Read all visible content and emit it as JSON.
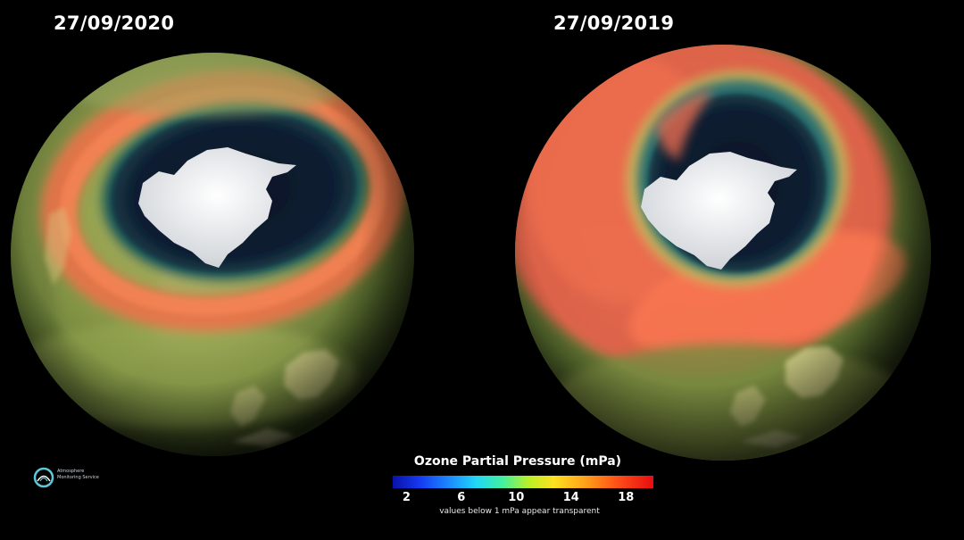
{
  "panels": [
    {
      "date": "27/09/2020"
    },
    {
      "date": "27/09/2019"
    }
  ],
  "colorbar": {
    "title": "Ozone Partial Pressure (mPa)",
    "ticks": [
      "2",
      "6",
      "10",
      "14",
      "18"
    ],
    "tick_values": [
      2,
      6,
      10,
      14,
      18
    ],
    "range": [
      1,
      20
    ],
    "note": "values below 1 mPa appear transparent",
    "colors": [
      "#0a12a8",
      "#1c8cff",
      "#20d8f8",
      "#b8f028",
      "#ffe020",
      "#ffa018",
      "#e80c10"
    ]
  },
  "logo": {
    "line1": "Atmosphere",
    "line2": "Monitoring Service",
    "icon": "cams-logo-icon"
  }
}
